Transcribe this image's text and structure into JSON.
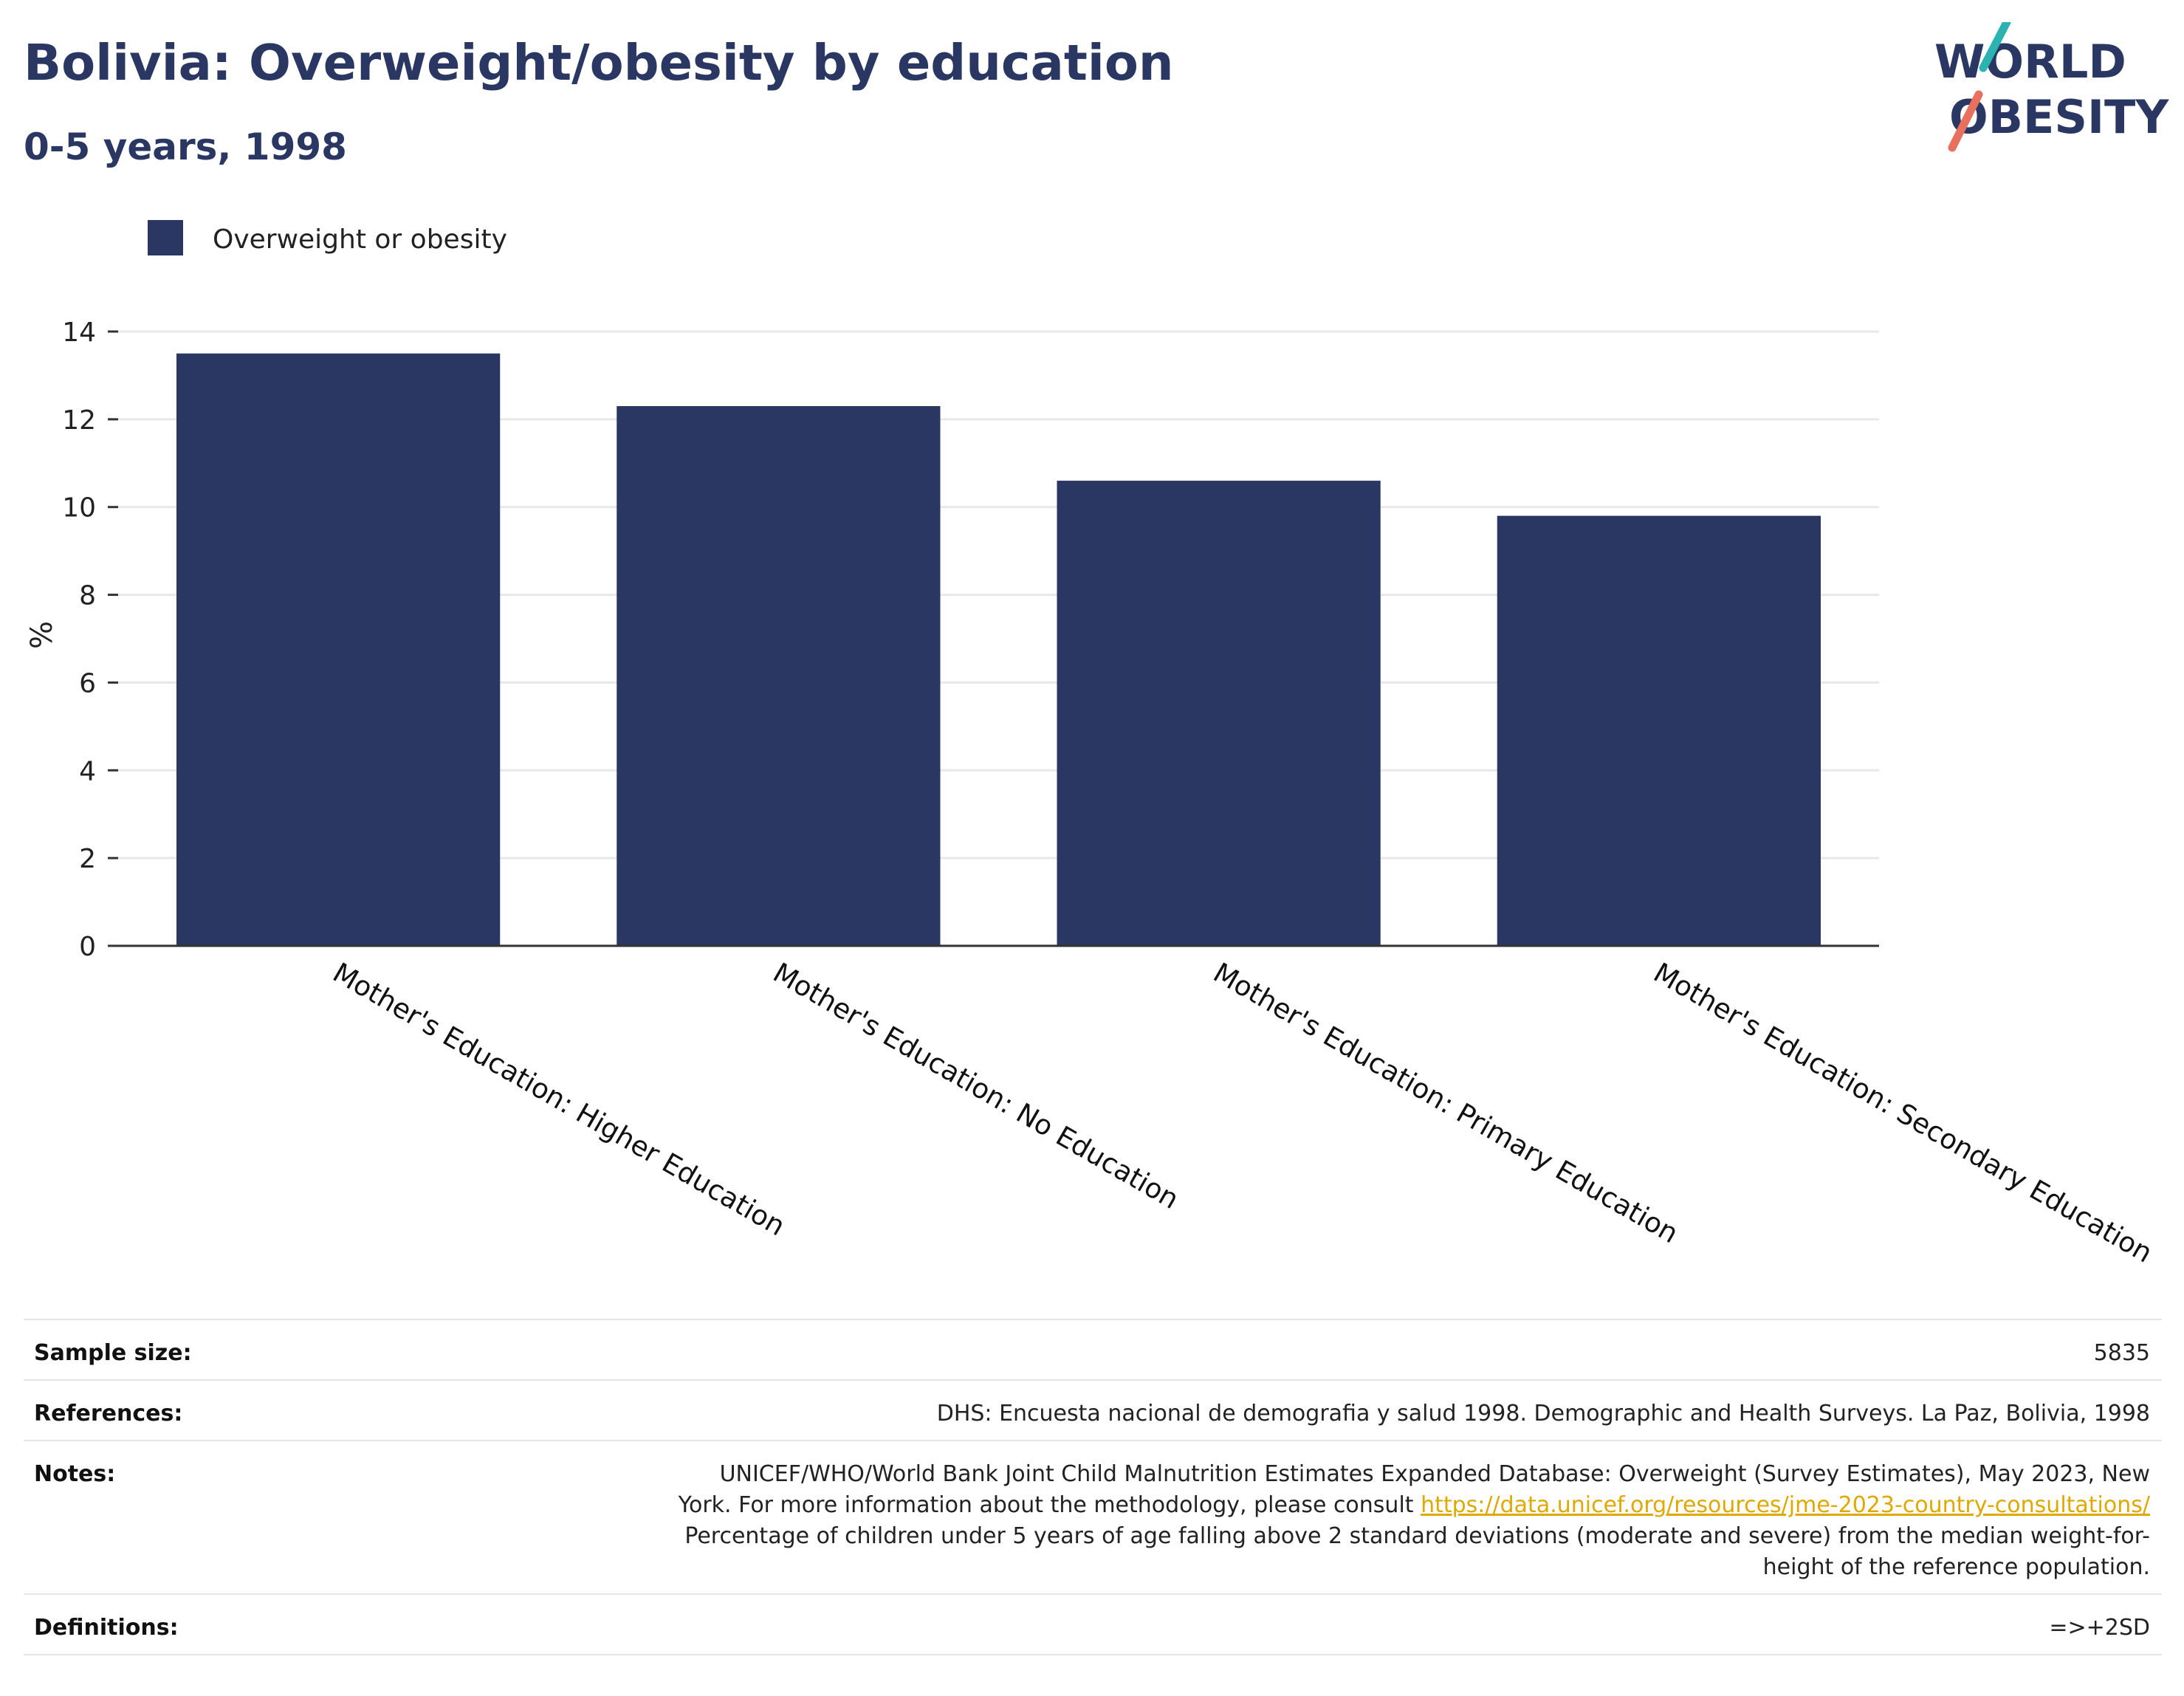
{
  "header": {
    "title": "Bolivia: Overweight/obesity by education",
    "subtitle": "0-5 years, 1998"
  },
  "logo": {
    "line1": "WORLD",
    "line2": "OBESITY",
    "slash_colors": [
      "#2bb3b1",
      "#e8705e"
    ],
    "text_color": "#2b3763"
  },
  "chart_data": {
    "type": "bar",
    "categories": [
      "Mother's Education: Higher Education",
      "Mother's Education: No Education",
      "Mother's Education: Primary Education",
      "Mother's Education: Secondary Education"
    ],
    "series": [
      {
        "name": "Overweight or obesity",
        "values": [
          13.5,
          12.3,
          10.6,
          9.8
        ],
        "color": "#2b3763"
      }
    ],
    "ylabel": "%",
    "ylim": [
      0,
      14
    ],
    "yticks": [
      0,
      2,
      4,
      6,
      8,
      10,
      12,
      14
    ],
    "grid": true,
    "legend_position": "top-left"
  },
  "info": {
    "sample_size_label": "Sample size:",
    "sample_size_value": "5835",
    "references_label": "References:",
    "references_value": "DHS: Encuesta nacional de demografia y salud 1998. Demographic and Health Surveys. La Paz, Bolivia, 1998",
    "notes_label": "Notes:",
    "notes_line1": "UNICEF/WHO/World Bank Joint Child Malnutrition Estimates Expanded Database: Overweight (Survey Estimates), May 2023, New",
    "notes_line2_prefix": "York. For more information about the methodology, please consult ",
    "notes_link": "https://data.unicef.org/resources/jme-2023-country-consultations/",
    "notes_line3": "Percentage of children under 5 years of age falling above 2 standard deviations (moderate and severe) from the median weight-for-",
    "notes_line4": "height of the reference population.",
    "definitions_label": "Definitions:",
    "definitions_value": "=>+2SD"
  }
}
